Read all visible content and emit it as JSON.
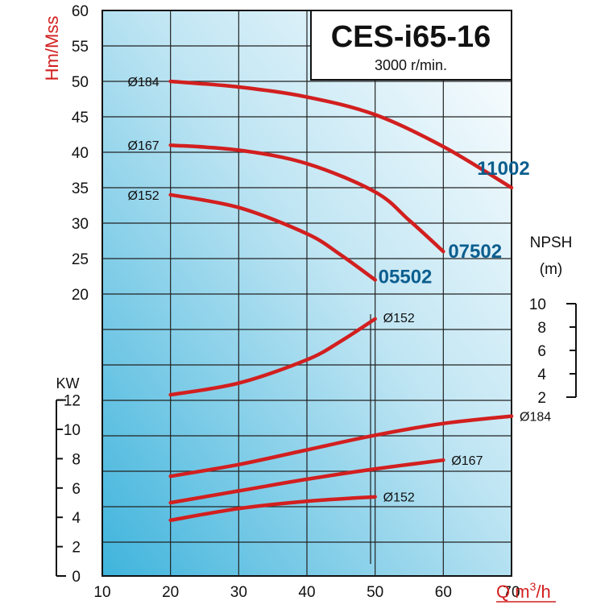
{
  "chart_data": {
    "type": "line",
    "title": "CES-i65-16",
    "subtitle": "3000 r/min.",
    "xlabel": "Q m³/h",
    "xlabel_main": "Q m",
    "xlabel_sup": "3",
    "xlabel_tail": "/h",
    "ylabel": "Hm/Mss",
    "kw_label": "KW",
    "npsh_label": "NPSH",
    "npsh_unit": "(m)",
    "xlim": [
      10,
      70
    ],
    "x_ticks": [
      "10",
      "20",
      "30",
      "40",
      "50",
      "60",
      "70"
    ],
    "head_ylim": [
      20,
      60
    ],
    "head_ticks": [
      "20",
      "25",
      "30",
      "35",
      "40",
      "45",
      "50",
      "55",
      "60"
    ],
    "kw_ylim": [
      0,
      12
    ],
    "kw_ticks": [
      "0",
      "2",
      "4",
      "6",
      "8",
      "10",
      "12"
    ],
    "npsh_ylim": [
      2,
      10
    ],
    "npsh_ticks": [
      "2",
      "4",
      "6",
      "8",
      "10"
    ],
    "grid": true,
    "colors": {
      "curve": "#d21f1f",
      "model_label": "#0b5e8f",
      "axis_label": "#d21f1f"
    },
    "head_series": [
      {
        "name": "Ø184",
        "model": "11002",
        "x": [
          20,
          30,
          40,
          50,
          60,
          70
        ],
        "y": [
          50,
          49.2,
          47.8,
          45.3,
          40.8,
          35
        ]
      },
      {
        "name": "Ø167",
        "model": "07502",
        "x": [
          20,
          30,
          40,
          50,
          55,
          60
        ],
        "y": [
          41,
          40.3,
          38.4,
          34.4,
          30.4,
          26
        ]
      },
      {
        "name": "Ø152",
        "model": "05502",
        "x": [
          20,
          30,
          40,
          45,
          50
        ],
        "y": [
          34,
          32.2,
          28.5,
          25.5,
          22
        ]
      }
    ],
    "npsh_series": [
      {
        "name": "Ø152",
        "x": [
          20,
          30,
          40,
          45,
          50
        ],
        "y": [
          2.2,
          3.2,
          5.2,
          6.8,
          8.7
        ]
      }
    ],
    "kw_series": [
      {
        "name": "Ø184",
        "x": [
          20,
          30,
          40,
          50,
          60,
          70
        ],
        "y": [
          6.8,
          7.6,
          8.6,
          9.6,
          10.4,
          10.9
        ]
      },
      {
        "name": "Ø167",
        "x": [
          20,
          30,
          40,
          50,
          60
        ],
        "y": [
          5,
          5.8,
          6.6,
          7.3,
          7.9
        ]
      },
      {
        "name": "Ø152",
        "x": [
          20,
          30,
          40,
          50
        ],
        "y": [
          3.8,
          4.6,
          5.1,
          5.4
        ]
      }
    ]
  }
}
